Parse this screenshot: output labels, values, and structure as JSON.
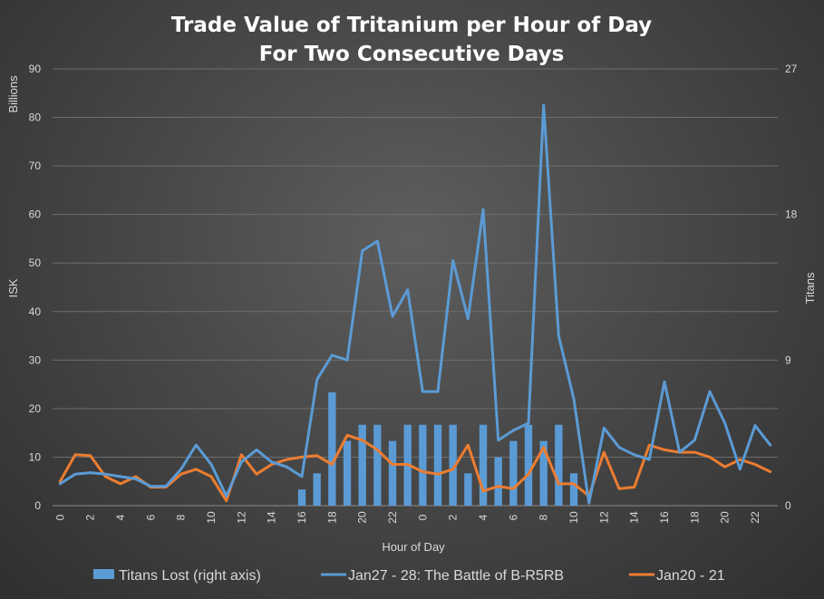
{
  "chart_data": {
    "type": "bar+line",
    "title_line1": "Trade Value of Tritanium per Hour of Day",
    "title_line2": "For Two Consecutive Days",
    "xlabel": "Hour of Day",
    "ylabel_left": "ISK",
    "ylabel_left_unit": "Billions",
    "ylabel_right": "Titans",
    "ylim_left": [
      0,
      90
    ],
    "yticks_left": [
      "0",
      "10",
      "20",
      "30",
      "40",
      "50",
      "60",
      "70",
      "80",
      "90"
    ],
    "ylim_right": [
      0,
      27
    ],
    "yticks_right": [
      "0",
      "9",
      "18",
      "27"
    ],
    "x_tick_labels": [
      "0",
      "2",
      "4",
      "6",
      "8",
      "10",
      "12",
      "14",
      "16",
      "18",
      "20",
      "22",
      "0",
      "2",
      "4",
      "6",
      "8",
      "10",
      "12",
      "14",
      "16",
      "18",
      "20",
      "22"
    ],
    "hours": [
      0,
      1,
      2,
      3,
      4,
      5,
      6,
      7,
      8,
      9,
      10,
      11,
      12,
      13,
      14,
      15,
      16,
      17,
      18,
      19,
      20,
      21,
      22,
      23,
      0,
      1,
      2,
      3,
      4,
      5,
      6,
      7,
      8,
      9,
      10,
      11,
      12,
      13,
      14,
      15,
      16,
      17,
      18,
      19,
      20,
      21,
      22,
      23
    ],
    "grid": true,
    "legend_position": "bottom",
    "series": [
      {
        "name": "Titans Lost (right axis)",
        "kind": "bar",
        "axis": "right",
        "color": "#5b9bd5",
        "values": [
          0,
          0,
          0,
          0,
          0,
          0,
          0,
          0,
          0,
          0,
          0,
          0,
          0,
          0,
          0,
          0,
          1,
          2,
          7,
          4,
          5,
          5,
          4,
          5,
          5,
          5,
          5,
          2,
          5,
          3,
          4,
          5,
          4,
          5,
          2,
          0,
          0,
          0,
          0,
          0,
          0,
          0,
          0,
          0,
          0,
          0,
          0,
          0
        ]
      },
      {
        "name": "Jan27 - 28: The Battle of B-R5RB",
        "kind": "line",
        "axis": "left",
        "color": "#5b9bd5",
        "values": [
          4.5,
          6.5,
          6.8,
          6.5,
          6.0,
          5.5,
          4.0,
          4.0,
          7.5,
          12.5,
          8.5,
          2.0,
          9.0,
          11.5,
          9.0,
          8.0,
          6.0,
          26.0,
          31.0,
          30.0,
          52.5,
          54.5,
          39.0,
          44.5,
          23.5,
          23.5,
          50.5,
          38.5,
          61.0,
          13.5,
          15.5,
          17.0,
          82.5,
          35.0,
          22.0,
          0.5,
          16.0,
          12.0,
          10.5,
          9.5,
          25.5,
          11.0,
          13.5,
          23.5,
          17.0,
          7.5,
          16.5,
          12.5
        ]
      },
      {
        "name": "Jan20 - 21",
        "kind": "line",
        "axis": "left",
        "color": "#ed7d31",
        "values": [
          5.0,
          10.5,
          10.3,
          6.0,
          4.5,
          6.0,
          3.8,
          3.8,
          6.5,
          7.5,
          6.0,
          1.0,
          10.5,
          6.5,
          8.5,
          9.5,
          10.0,
          10.3,
          8.5,
          14.5,
          13.5,
          11.5,
          8.5,
          8.5,
          7.0,
          6.5,
          7.5,
          12.5,
          3.0,
          4.0,
          3.5,
          6.5,
          12.0,
          4.5,
          4.5,
          2.0,
          11.0,
          3.5,
          3.8,
          12.5,
          11.5,
          11.0,
          11.0,
          10.0,
          8.0,
          9.5,
          8.5,
          7.0
        ]
      }
    ]
  }
}
